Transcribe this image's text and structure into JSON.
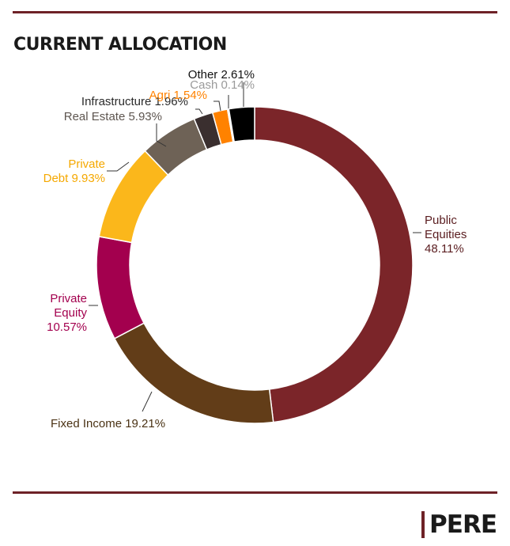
{
  "header": {
    "title": "CURRENT ALLOCATION"
  },
  "brand": {
    "logo_text": "PERE",
    "accent": "#6e2227"
  },
  "chart_data": {
    "type": "pie",
    "donut": true,
    "title": "CURRENT ALLOCATION",
    "unit": "%",
    "slices": [
      {
        "name": "Public Equities",
        "value": 48.11,
        "color": "#7b2529",
        "label_lines": [
          "Public",
          "Equities",
          "48.11%"
        ],
        "label_color": "#5a1d20"
      },
      {
        "name": "Fixed Income",
        "value": 19.21,
        "color": "#623d18",
        "label_lines": [
          "Fixed Income 19.21%"
        ],
        "label_color": "#4a3214"
      },
      {
        "name": "Private Equity",
        "value": 10.57,
        "color": "#a3004e",
        "label_lines": [
          "Private",
          "Equity",
          "10.57%"
        ],
        "label_color": "#a3004e"
      },
      {
        "name": "Private Debt",
        "value": 9.93,
        "color": "#fbb71b",
        "label_lines": [
          "Private",
          "Debt 9.93%"
        ],
        "label_color": "#f5a800"
      },
      {
        "name": "Real Estate",
        "value": 5.93,
        "color": "#6e6256",
        "label_lines": [
          "Real Estate 5.93%"
        ],
        "label_color": "#5e5650"
      },
      {
        "name": "Infrastructure",
        "value": 1.96,
        "color": "#3a2f2f",
        "label_lines": [
          "Infrastructure 1.96%"
        ],
        "label_color": "#2b2b2b"
      },
      {
        "name": "Agri",
        "value": 1.54,
        "color": "#ff8200",
        "label_lines": [
          "Agri 1.54%"
        ],
        "label_color": "#ff8200"
      },
      {
        "name": "Cash",
        "value": 0.14,
        "color": "#bdbdbd",
        "label_lines": [
          "Cash 0.14%"
        ],
        "label_color": "#9a9a9a"
      },
      {
        "name": "Other",
        "value": 2.61,
        "color": "#000000",
        "label_lines": [
          "Other 2.61%"
        ],
        "label_color": "#111111"
      }
    ]
  }
}
